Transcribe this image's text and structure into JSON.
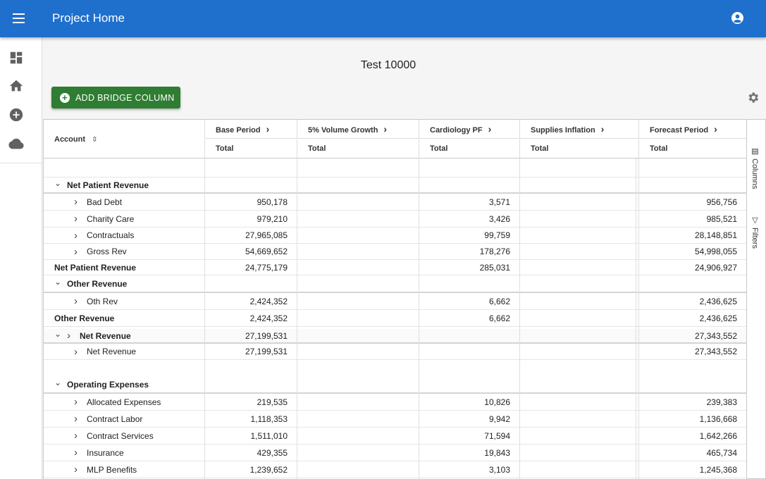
{
  "app": {
    "title": "Project Home"
  },
  "icons": {
    "menu": "menu-icon",
    "account": "account-circle-icon",
    "dashboard": "dashboard-icon",
    "home": "home-icon",
    "add": "add-circle-icon",
    "cloud": "cloud-icon",
    "settings": "gear-icon"
  },
  "page": {
    "title": "Test 10000",
    "add_bridge_label": "ADD BRIDGE COLUMN"
  },
  "side_tabs": {
    "columns": "Columns",
    "filters": "Filters"
  },
  "grid": {
    "account_header": "Account",
    "columns": [
      {
        "label": "Base Period",
        "sub": "Total"
      },
      {
        "label": "5% Volume Growth",
        "sub": "Total"
      },
      {
        "label": "Cardiology PF",
        "sub": "Total"
      },
      {
        "label": "Supplies Inflation",
        "sub": "Total"
      },
      {
        "label": "Forecast Period",
        "sub": "Total"
      }
    ],
    "rows": [
      {
        "label": "Net Patient Revenue",
        "kind": "group",
        "values": [
          "",
          "",
          "",
          "",
          ""
        ]
      },
      {
        "label": "Bad Debt",
        "kind": "child",
        "values": [
          "950,178",
          "",
          "3,571",
          "",
          "956,756"
        ]
      },
      {
        "label": "Charity Care",
        "kind": "child",
        "values": [
          "979,210",
          "",
          "3,426",
          "",
          "985,521"
        ]
      },
      {
        "label": "Contractuals",
        "kind": "child",
        "values": [
          "27,965,085",
          "",
          "99,759",
          "",
          "28,148,851"
        ]
      },
      {
        "label": "Gross Rev",
        "kind": "child",
        "values": [
          "54,669,652",
          "",
          "178,276",
          "",
          "54,998,055"
        ]
      },
      {
        "label": "Net Patient Revenue",
        "kind": "total",
        "values": [
          "24,775,179",
          "",
          "285,031",
          "",
          "24,906,927"
        ]
      },
      {
        "label": "Other Revenue",
        "kind": "group",
        "values": [
          "",
          "",
          "",
          "",
          ""
        ]
      },
      {
        "label": "Oth Rev",
        "kind": "child",
        "values": [
          "2,424,352",
          "",
          "6,662",
          "",
          "2,436,625"
        ]
      },
      {
        "label": "Other Revenue",
        "kind": "total",
        "values": [
          "2,424,352",
          "",
          "6,662",
          "",
          "2,436,625"
        ]
      },
      {
        "label": "Net Revenue",
        "kind": "group2",
        "values": [
          "27,199,531",
          "",
          "",
          "",
          "27,343,552"
        ]
      },
      {
        "label": "Net Revenue",
        "kind": "child",
        "values": [
          "27,199,531",
          "",
          "",
          "",
          "27,343,552"
        ]
      },
      {
        "label": "Operating Expenses",
        "kind": "group",
        "values": [
          "",
          "",
          "",
          "",
          ""
        ]
      },
      {
        "label": "Allocated Expenses",
        "kind": "child",
        "values": [
          "219,535",
          "",
          "10,826",
          "",
          "239,383"
        ]
      },
      {
        "label": "Contract Labor",
        "kind": "child",
        "values": [
          "1,118,353",
          "",
          "9,942",
          "",
          "1,136,668"
        ]
      },
      {
        "label": "Contract Services",
        "kind": "child",
        "values": [
          "1,511,010",
          "",
          "71,594",
          "",
          "1,642,266"
        ]
      },
      {
        "label": "Insurance",
        "kind": "child",
        "values": [
          "429,355",
          "",
          "19,843",
          "",
          "465,734"
        ]
      },
      {
        "label": "MLP Benefits",
        "kind": "child",
        "values": [
          "1,239,652",
          "",
          "3,103",
          "",
          "1,245,368"
        ]
      }
    ]
  }
}
